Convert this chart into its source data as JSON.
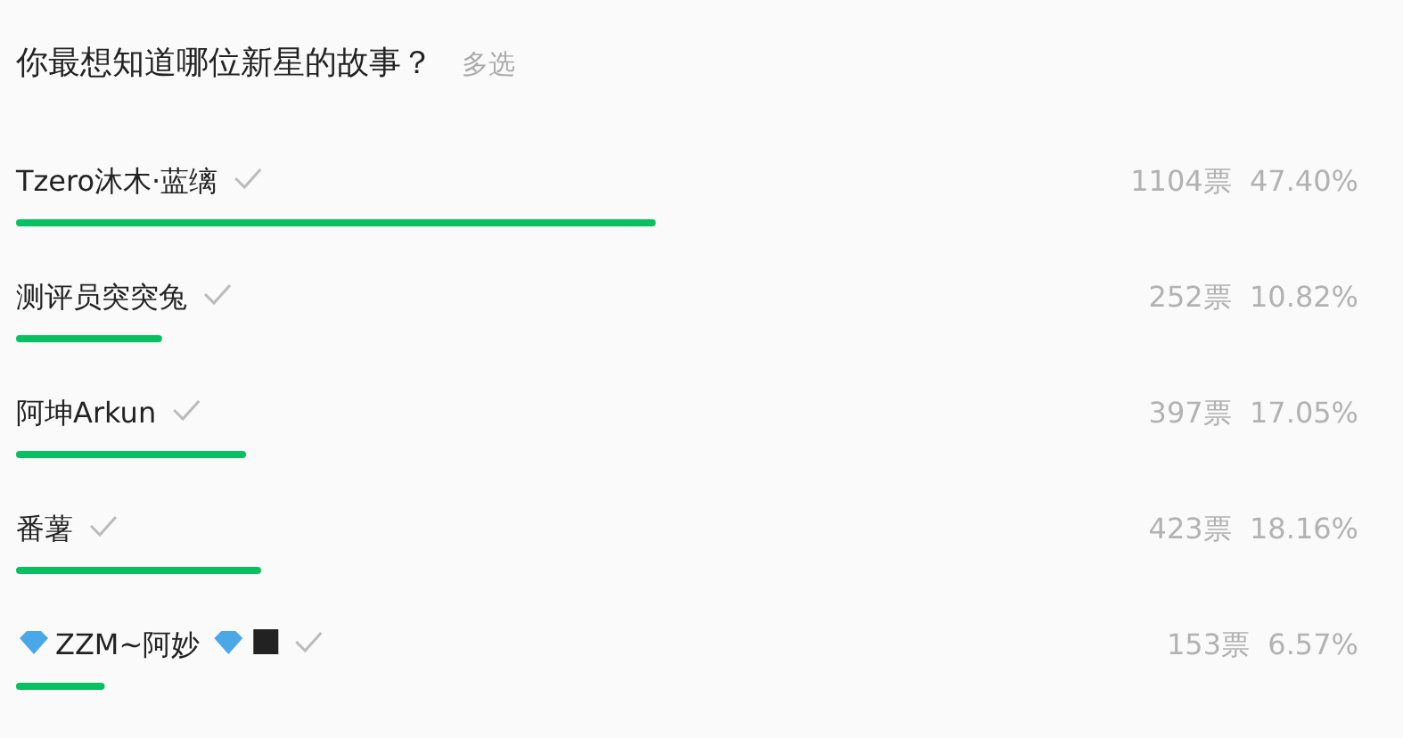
{
  "chart_data": {
    "type": "bar",
    "orientation": "horizontal",
    "title": "你最想知道哪位新星的故事？",
    "subtitle": "多选",
    "categories": [
      "Tzero沐木·蓝缡",
      "测评员突突兔",
      "阿坤Arkun",
      "番薯",
      "ZZM~阿妙"
    ],
    "values": [
      1104,
      252,
      397,
      423,
      153
    ],
    "value_labels": [
      "1104票  47.40%",
      "252票  10.82%",
      "397票  17.05%",
      "423票  18.16%",
      "153票  6.57%"
    ],
    "color": "#07c160"
  }
}
